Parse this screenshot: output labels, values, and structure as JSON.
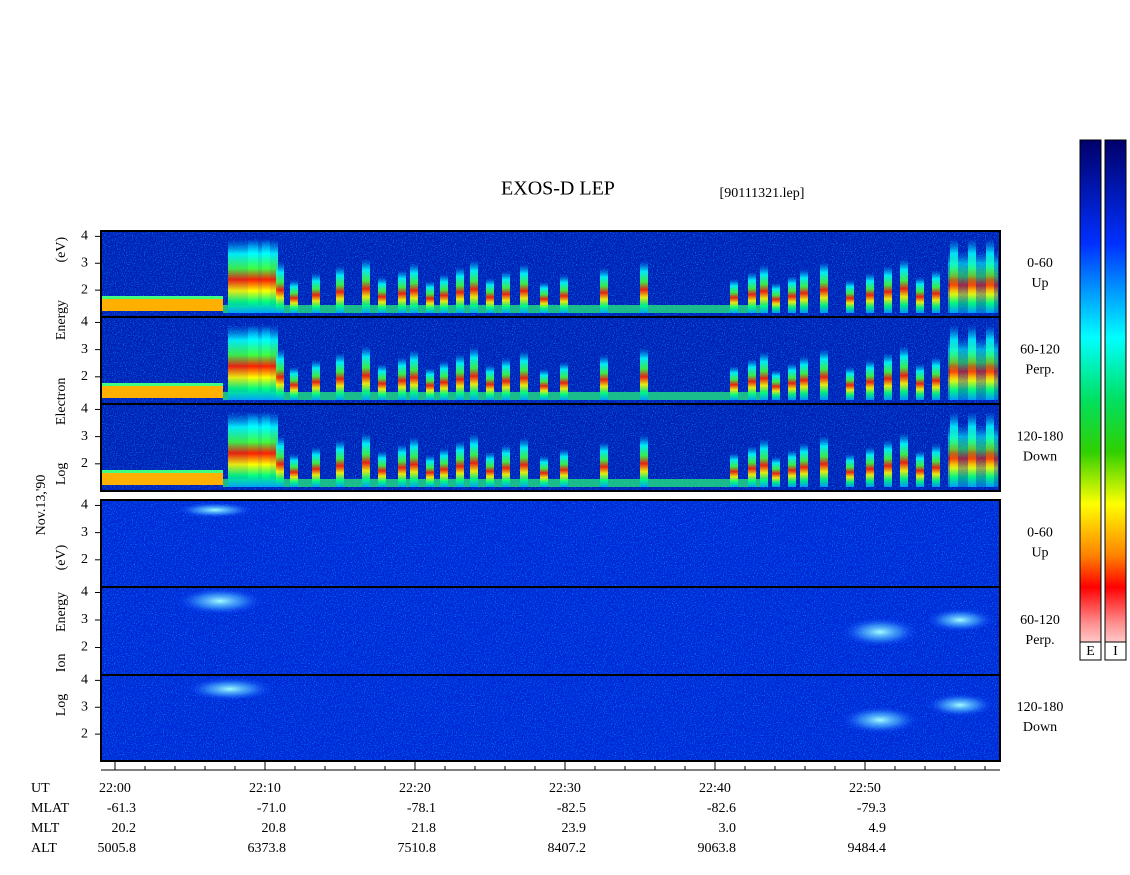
{
  "chart_data": {
    "type": "spectrogram",
    "title": "EXOS-D LEP",
    "file": "[90111321.lep]",
    "date": "Nov.13,'90",
    "groups": [
      {
        "ylabel": "Log Electron Energy (eV)",
        "panels": [
          {
            "range": "0-60",
            "dir": "Up"
          },
          {
            "range": "60-120",
            "dir": "Perp."
          },
          {
            "range": "120-180",
            "dir": "Down"
          }
        ]
      },
      {
        "ylabel": "Log Ion Energy (eV)",
        "panels": [
          {
            "range": "0-60",
            "dir": "Up"
          },
          {
            "range": "60-120",
            "dir": "Perp."
          },
          {
            "range": "120-180",
            "dir": "Down"
          }
        ]
      }
    ],
    "ylim": [
      1,
      4.2
    ],
    "yticks": [
      2,
      3,
      4
    ],
    "x_label": "UT",
    "xlim": [
      "21:59:04",
      "22:59:00"
    ],
    "xticks": [
      "22:00",
      "22:10",
      "22:20",
      "22:30",
      "22:40",
      "22:50"
    ],
    "xminorticks": [
      "22:02",
      "22:04",
      "22:06",
      "22:08",
      "22:12",
      "22:14",
      "22:16",
      "22:18",
      "22:22",
      "22:24",
      "22:26",
      "22:28",
      "22:32",
      "22:34",
      "22:36",
      "22:38",
      "22:42",
      "22:44",
      "22:46",
      "22:48",
      "22:52",
      "22:54",
      "22:56",
      "22:58"
    ],
    "ephemeris": [
      {
        "label": "MLAT",
        "values": [
          "-61.3",
          "-71.0",
          "-78.1",
          "-82.5",
          "-82.6",
          "-79.3"
        ]
      },
      {
        "label": "MLT",
        "values": [
          "20.2",
          "20.8",
          "21.8",
          "23.9",
          "3.0",
          "4.9"
        ]
      },
      {
        "label": "ALT",
        "values": [
          "5005.8",
          "6373.8",
          "7510.8",
          "8407.2",
          "9063.8",
          "9484.4"
        ]
      }
    ],
    "colorbars": [
      "E",
      "I"
    ]
  }
}
